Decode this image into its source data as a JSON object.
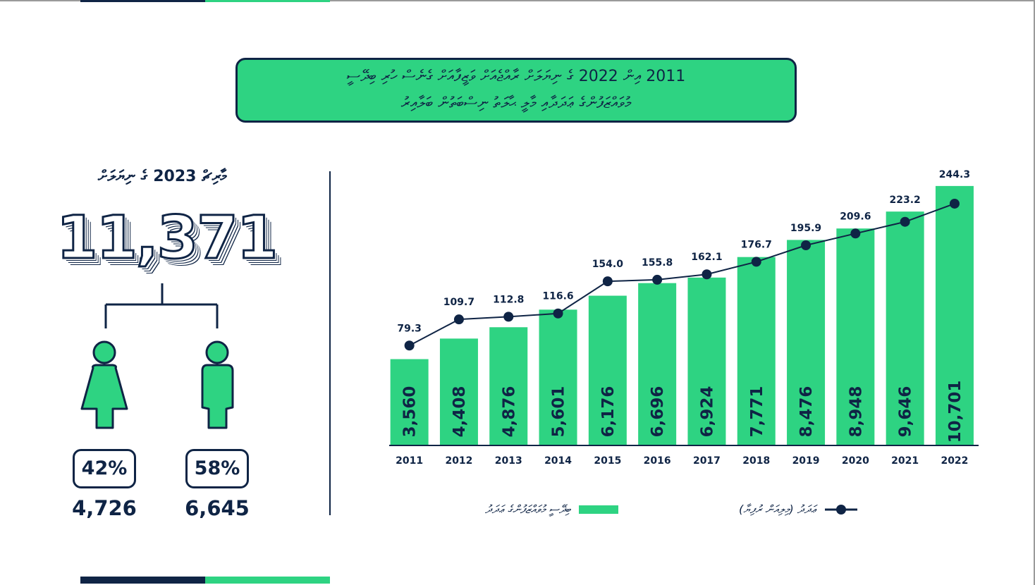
{
  "title": {
    "line1": "2011 އިން 2022 ގެ ނިޔަލަށް ރާއްޖެއަށް ވަޒީފާއަށް ގެނެސް ހުރި ބިދޭސީ",
    "line2": "މުވައްޒަފުންގެ ޢަދަދާއި މާލީ ޙާލަތު ނިސްބަތުން ބަލާއިރު"
  },
  "summary": {
    "header": "މާރިޗް 2023 ގެ ނިޔަލަށް",
    "total": "11,371",
    "female": {
      "percent": "42%",
      "count": "4,726"
    },
    "male": {
      "percent": "58%",
      "count": "6,645"
    }
  },
  "legend": {
    "bar_label": "ބިދޭސީ މުވައްޒަފުންގެ ޢަދަދު",
    "line_label": "ޢަދަދު (މިލިއަން ރުފިޔާ)"
  },
  "colors": {
    "navy": "#0f2445",
    "green": "#2ed382",
    "bar_text": "#0f2445",
    "bar_value_text": "#0f2445"
  },
  "chart_data": {
    "type": "bar",
    "categories": [
      "2011",
      "2012",
      "2013",
      "2014",
      "2015",
      "2016",
      "2017",
      "2018",
      "2019",
      "2020",
      "2021",
      "2022"
    ],
    "series": [
      {
        "name": "ބިދޭސީ މުވައްޒަފުންގެ ޢަދަދު",
        "kind": "bar",
        "values": [
          3560,
          4408,
          4876,
          5601,
          6176,
          6696,
          6924,
          7771,
          8476,
          8948,
          9646,
          10701
        ],
        "labels": [
          "3,560",
          "4,408",
          "4,876",
          "5,601",
          "6,176",
          "6,696",
          "6,924",
          "7,771",
          "8,476",
          "8,948",
          "9,646",
          "10,701"
        ]
      },
      {
        "name": "ޢަދަދު (މިލިއަން ރުފިޔާ)",
        "kind": "line",
        "values": [
          79.3,
          109.7,
          112.8,
          116.6,
          154.0,
          155.8,
          162.1,
          176.7,
          195.9,
          209.6,
          223.2,
          244.3
        ],
        "labels": [
          "79.3",
          "109.7",
          "112.8",
          "116.6",
          "154.0",
          "155.8",
          "162.1",
          "176.7",
          "195.9",
          "209.6",
          "223.2",
          "244.3"
        ]
      }
    ],
    "ylim_line": [
      0,
      250
    ],
    "legend_position": "bottom"
  }
}
